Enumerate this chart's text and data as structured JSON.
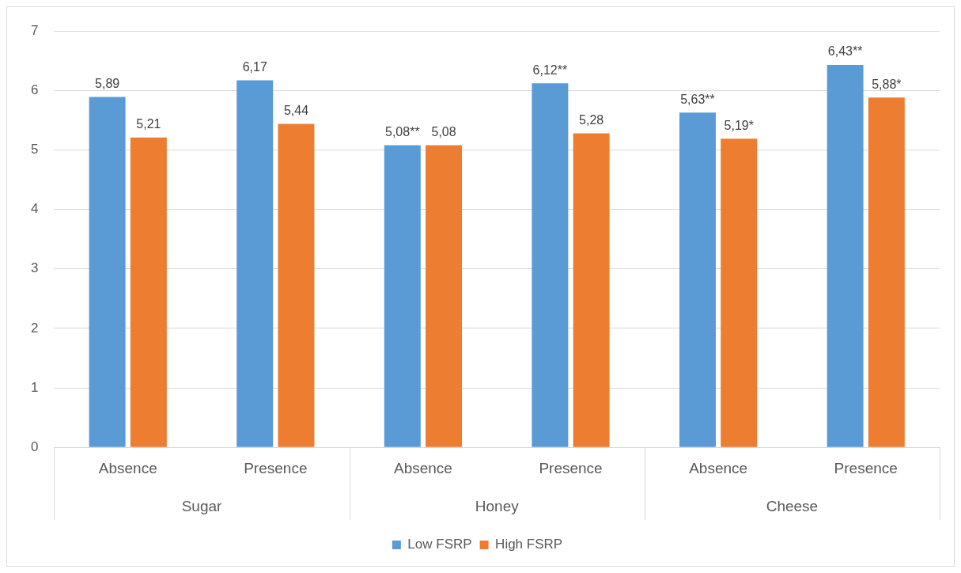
{
  "chart_data": {
    "type": "bar",
    "categories": [
      "Absence",
      "Presence",
      "Absence",
      "Presence",
      "Absence",
      "Presence"
    ],
    "series": [
      {
        "name": "Low FSRP",
        "color": "#5b9bd5",
        "values": [
          5.89,
          6.17,
          5.08,
          6.12,
          5.63,
          6.43
        ],
        "value_labels": [
          "5,89",
          "6,17",
          "5,08**",
          "6,12**",
          "5,63**",
          "6,43**"
        ]
      },
      {
        "name": "High FSRP",
        "color": "#ed7d31",
        "values": [
          5.21,
          5.44,
          5.08,
          5.28,
          5.19,
          5.88
        ],
        "value_labels": [
          "5,21",
          "5,44",
          "5,08",
          "5,28",
          "5,19*",
          "5,88*"
        ]
      }
    ],
    "annotations": [
      "Sugar",
      "Honey",
      "Cheese"
    ],
    "ylim": [
      0,
      7
    ],
    "yticks": [
      0,
      1,
      2,
      3,
      4,
      5,
      6,
      7
    ],
    "grid": "y",
    "legend": "bottom"
  }
}
